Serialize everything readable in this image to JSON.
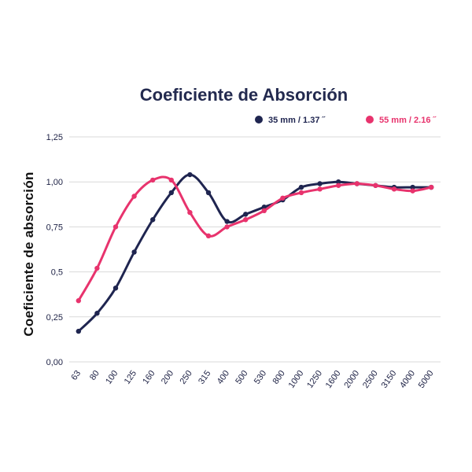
{
  "chart_data": {
    "type": "line",
    "title": "Coeficiente de Absorción",
    "xlabel": "",
    "ylabel": "Coeficiente de absorción",
    "categories": [
      "63",
      "80",
      "100",
      "125",
      "160",
      "200",
      "250",
      "315",
      "400",
      "500",
      "530",
      "800",
      "1000",
      "1250",
      "1600",
      "2000",
      "2500",
      "3150",
      "4000",
      "5000"
    ],
    "y_ticks": [
      "0,00",
      "0,25",
      "0,5",
      "0,75",
      "1,00",
      "1,25"
    ],
    "ylim": [
      0,
      1.25
    ],
    "grid": true,
    "legend_position": "top-right",
    "series": [
      {
        "name": "35 mm / 1.37 ˝",
        "color": "#1f2550",
        "values": [
          0.17,
          0.27,
          0.41,
          0.61,
          0.79,
          0.94,
          1.04,
          0.94,
          0.78,
          0.82,
          0.86,
          0.9,
          0.97,
          0.99,
          1.0,
          0.99,
          0.98,
          0.97,
          0.97,
          0.97
        ]
      },
      {
        "name": "55 mm / 2.16 ˝",
        "color": "#e8336d",
        "values": [
          0.34,
          0.52,
          0.75,
          0.92,
          1.01,
          1.01,
          0.83,
          0.7,
          0.75,
          0.79,
          0.84,
          0.91,
          0.94,
          0.96,
          0.98,
          0.99,
          0.98,
          0.96,
          0.95,
          0.97
        ]
      }
    ]
  }
}
